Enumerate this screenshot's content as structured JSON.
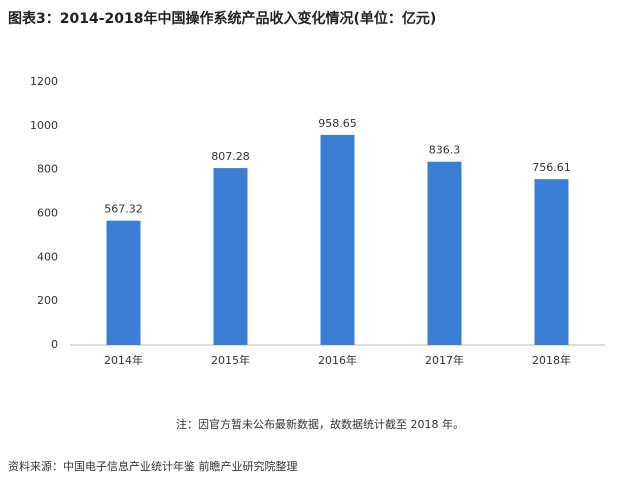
{
  "chart_data": {
    "type": "bar",
    "title": "图表3：2014-2018年中国操作系统产品收入变化情况(单位：亿元)",
    "categories": [
      "2014年",
      "2015年",
      "2016年",
      "2017年",
      "2018年"
    ],
    "values": [
      567.32,
      807.28,
      958.65,
      836.3,
      756.61
    ],
    "color": "#3a7ed6",
    "ylim": [
      0,
      1200
    ],
    "yticks": [
      0,
      200,
      400,
      600,
      800,
      1000,
      1200
    ],
    "grid": false,
    "note": "注：因官方暂未公布最新数据，故数据统计截至 2018 年。",
    "source": "资料来源：中国电子信息产业统计年鉴 前瞻产业研究院整理"
  }
}
